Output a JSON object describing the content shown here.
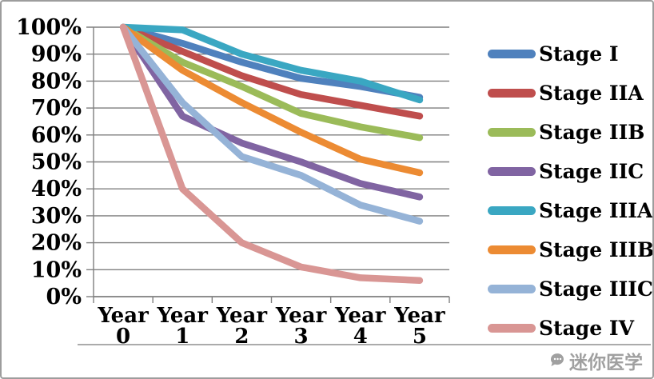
{
  "chart_data": {
    "type": "line",
    "title": "",
    "xlabel": "",
    "ylabel": "",
    "categories": [
      "Year 0",
      "Year 1",
      "Year 2",
      "Year 3",
      "Year 4",
      "Year 5"
    ],
    "y_ticks": [
      {
        "label": "100%",
        "value": 100
      },
      {
        "label": "90%",
        "value": 90
      },
      {
        "label": "80%",
        "value": 80
      },
      {
        "label": "70%",
        "value": 70
      },
      {
        "label": "60%",
        "value": 60
      },
      {
        "label": "50%",
        "value": 50
      },
      {
        "label": "40%",
        "value": 40
      },
      {
        "label": "30%",
        "value": 30
      },
      {
        "label": "20%",
        "value": 20
      },
      {
        "label": "10%",
        "value": 10
      },
      {
        "label": "0%",
        "value": 0
      }
    ],
    "ylim": [
      0,
      100
    ],
    "grid": true,
    "legend_position": "right",
    "series": [
      {
        "name": "Stage I",
        "color": "#4f81bd",
        "values": [
          100,
          94,
          87,
          81,
          78,
          74
        ]
      },
      {
        "name": "Stage IIA",
        "color": "#bf4e4d",
        "values": [
          100,
          91,
          82,
          75,
          71,
          67
        ]
      },
      {
        "name": "Stage IIB",
        "color": "#9bbb59",
        "values": [
          100,
          87,
          78,
          68,
          63,
          59
        ]
      },
      {
        "name": "Stage IIC",
        "color": "#8064a2",
        "values": [
          100,
          67,
          57,
          50,
          42,
          37
        ]
      },
      {
        "name": "Stage IIIA",
        "color": "#3aa7c2",
        "values": [
          100,
          99,
          90,
          84,
          80,
          73
        ]
      },
      {
        "name": "Stage IIIB",
        "color": "#ec8b33",
        "values": [
          100,
          84,
          72,
          61,
          51,
          46
        ]
      },
      {
        "name": "Stage IIIC",
        "color": "#95b3d7",
        "values": [
          100,
          72,
          52,
          45,
          34,
          28
        ]
      },
      {
        "name": "Stage IV",
        "color": "#d99694",
        "values": [
          100,
          40,
          20,
          11,
          7,
          6
        ]
      }
    ],
    "style": {
      "line_width": 8.5,
      "grid_color": "#7f7f7f",
      "axis_color": "#7f7f7f"
    }
  },
  "watermark": {
    "text": "迷你医学"
  }
}
